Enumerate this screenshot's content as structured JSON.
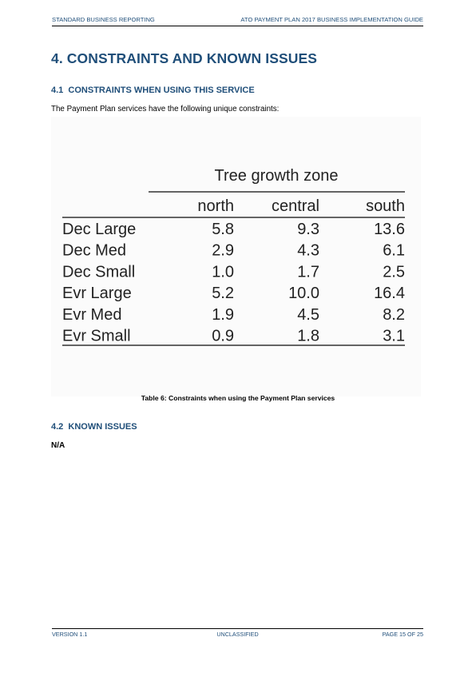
{
  "header": {
    "left": "STANDARD BUSINESS REPORTING",
    "right": "ATO PAYMENT PLAN 2017 BUSINESS IMPLEMENTATION GUIDE"
  },
  "section": {
    "number": "4.",
    "title": "CONSTRAINTS AND KNOWN ISSUES"
  },
  "sub1": {
    "number": "4.1",
    "title": "CONSTRAINTS WHEN USING THIS SERVICE"
  },
  "intro": "The Payment Plan services have the following unique constraints:",
  "table": {
    "group_header": "Tree growth zone",
    "columns": [
      "north",
      "central",
      "south"
    ],
    "rows": [
      {
        "label": "Dec Large",
        "values": [
          "5.8",
          "9.3",
          "13.6"
        ]
      },
      {
        "label": "Dec Med",
        "values": [
          "2.9",
          "4.3",
          "6.1"
        ]
      },
      {
        "label": "Dec Small",
        "values": [
          "1.0",
          "1.7",
          "2.5"
        ]
      },
      {
        "label": "Evr Large",
        "values": [
          "5.2",
          "10.0",
          "16.4"
        ]
      },
      {
        "label": "Evr Med",
        "values": [
          "1.9",
          "4.5",
          "8.2"
        ]
      },
      {
        "label": "Evr Small",
        "values": [
          "0.9",
          "1.8",
          "3.1"
        ]
      }
    ]
  },
  "caption": "Table 6: Constraints when using the Payment Plan services",
  "sub2": {
    "number": "4.2",
    "title": "KNOWN ISSUES"
  },
  "known_issues": "N/A",
  "footer": {
    "left": "VERSION 1.1",
    "center": "UNCLASSIFIED",
    "right": "PAGE 15 OF 25"
  }
}
